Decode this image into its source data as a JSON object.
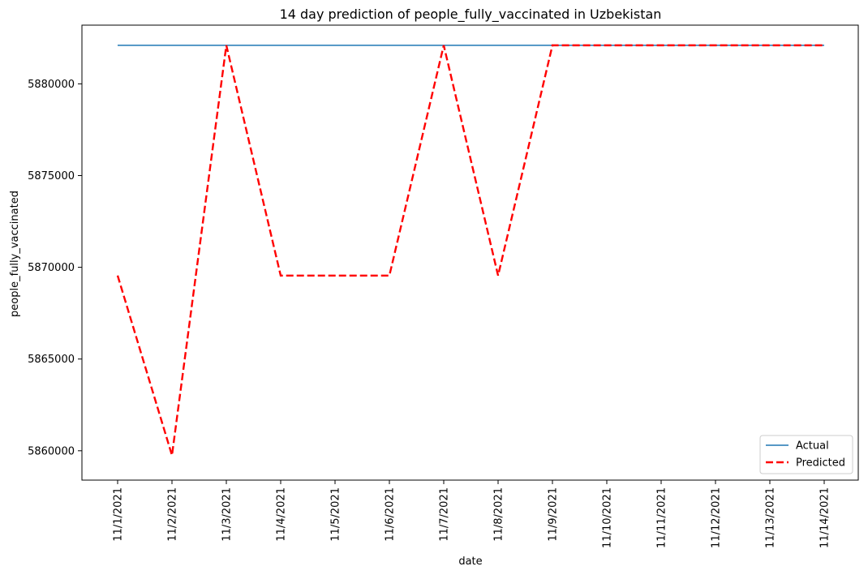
{
  "chart_data": {
    "type": "line",
    "title": "14 day prediction of people_fully_vaccinated in Uzbekistan",
    "xlabel": "date",
    "ylabel": "people_fully_vaccinated",
    "categories": [
      "11/1/2021",
      "11/2/2021",
      "11/3/2021",
      "11/4/2021",
      "11/5/2021",
      "11/6/2021",
      "11/7/2021",
      "11/8/2021",
      "11/9/2021",
      "11/10/2021",
      "11/11/2021",
      "11/12/2021",
      "11/13/2021",
      "11/14/2021"
    ],
    "ylim": [
      5858400,
      5883200
    ],
    "yticks": [
      5860000,
      5865000,
      5870000,
      5875000,
      5880000
    ],
    "ytick_labels": [
      "5860000",
      "5865000",
      "5870000",
      "5875000",
      "5880000"
    ],
    "grid": false,
    "legend_position": "lower-right",
    "series": [
      {
        "name": "Actual",
        "color": "#1f77b4",
        "style": "solid",
        "values": [
          5882100,
          5882100,
          5882100,
          5882100,
          5882100,
          5882100,
          5882100,
          5882100,
          5882100,
          5882100,
          5882100,
          5882100,
          5882100,
          5882100
        ]
      },
      {
        "name": "Predicted",
        "color": "#ff0000",
        "style": "dashed",
        "values": [
          5869550,
          5859750,
          5882100,
          5869550,
          5869550,
          5869550,
          5882100,
          5869550,
          5882100,
          5882100,
          5882100,
          5882100,
          5882100,
          5882100
        ]
      }
    ]
  }
}
